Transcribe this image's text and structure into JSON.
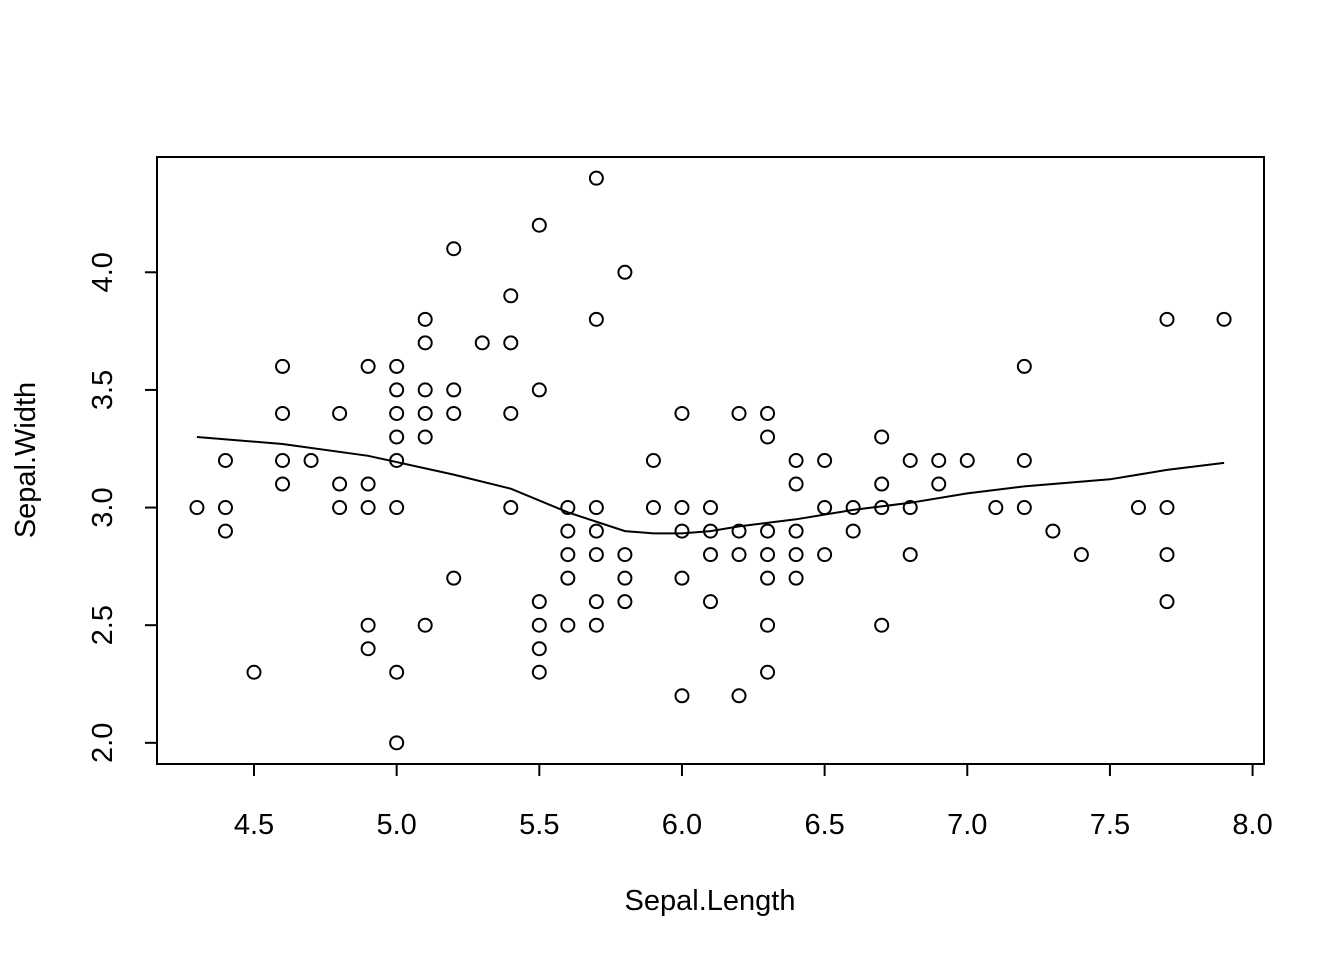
{
  "chart_data": {
    "type": "scatter",
    "title": "",
    "xlabel": "Sepal.Length",
    "ylabel": "Sepal.Width",
    "xlim": [
      4.16,
      8.04
    ],
    "ylim": [
      1.91,
      4.49
    ],
    "xticks": [
      4.5,
      5.0,
      5.5,
      6.0,
      6.5,
      7.0,
      7.5,
      8.0
    ],
    "xtick_labels": [
      "4.5",
      "5.0",
      "5.5",
      "6.0",
      "6.5",
      "7.0",
      "7.5",
      "8.0"
    ],
    "yticks": [
      2.0,
      2.5,
      3.0,
      3.5,
      4.0
    ],
    "ytick_labels": [
      "2.0",
      "2.5",
      "3.0",
      "3.5",
      "4.0"
    ],
    "grid": false,
    "legend": "none",
    "points": [
      [
        4.3,
        3.0
      ],
      [
        4.4,
        3.2
      ],
      [
        4.4,
        3.0
      ],
      [
        4.4,
        2.9
      ],
      [
        4.5,
        2.3
      ],
      [
        4.6,
        3.6
      ],
      [
        4.6,
        3.4
      ],
      [
        4.6,
        3.2
      ],
      [
        4.6,
        3.1
      ],
      [
        4.7,
        3.2
      ],
      [
        4.8,
        3.4
      ],
      [
        4.8,
        3.1
      ],
      [
        4.8,
        3.0
      ],
      [
        4.9,
        3.6
      ],
      [
        4.9,
        3.1
      ],
      [
        4.9,
        3.0
      ],
      [
        4.9,
        2.5
      ],
      [
        4.9,
        2.4
      ],
      [
        5.0,
        3.6
      ],
      [
        5.0,
        3.5
      ],
      [
        5.0,
        3.4
      ],
      [
        5.0,
        3.3
      ],
      [
        5.0,
        3.2
      ],
      [
        5.0,
        3.0
      ],
      [
        5.0,
        2.3
      ],
      [
        5.0,
        2.0
      ],
      [
        5.1,
        3.8
      ],
      [
        5.1,
        3.7
      ],
      [
        5.1,
        3.5
      ],
      [
        5.1,
        3.4
      ],
      [
        5.1,
        3.3
      ],
      [
        5.1,
        2.5
      ],
      [
        5.2,
        4.1
      ],
      [
        5.2,
        3.5
      ],
      [
        5.2,
        3.4
      ],
      [
        5.2,
        2.7
      ],
      [
        5.3,
        3.7
      ],
      [
        5.4,
        3.9
      ],
      [
        5.4,
        3.7
      ],
      [
        5.4,
        3.4
      ],
      [
        5.4,
        3.0
      ],
      [
        5.5,
        4.2
      ],
      [
        5.5,
        3.5
      ],
      [
        5.5,
        2.6
      ],
      [
        5.5,
        2.5
      ],
      [
        5.5,
        2.4
      ],
      [
        5.5,
        2.3
      ],
      [
        5.6,
        3.0
      ],
      [
        5.6,
        2.9
      ],
      [
        5.6,
        2.8
      ],
      [
        5.6,
        2.7
      ],
      [
        5.6,
        2.5
      ],
      [
        5.7,
        4.4
      ],
      [
        5.7,
        3.8
      ],
      [
        5.7,
        3.0
      ],
      [
        5.7,
        2.9
      ],
      [
        5.7,
        2.8
      ],
      [
        5.7,
        2.6
      ],
      [
        5.7,
        2.5
      ],
      [
        5.8,
        4.0
      ],
      [
        5.8,
        2.8
      ],
      [
        5.8,
        2.7
      ],
      [
        5.8,
        2.6
      ],
      [
        5.9,
        3.2
      ],
      [
        5.9,
        3.0
      ],
      [
        6.0,
        3.4
      ],
      [
        6.0,
        3.0
      ],
      [
        6.0,
        2.9
      ],
      [
        6.0,
        2.7
      ],
      [
        6.0,
        2.2
      ],
      [
        6.1,
        3.0
      ],
      [
        6.1,
        2.9
      ],
      [
        6.1,
        2.8
      ],
      [
        6.1,
        2.6
      ],
      [
        6.2,
        3.4
      ],
      [
        6.2,
        2.9
      ],
      [
        6.2,
        2.8
      ],
      [
        6.2,
        2.2
      ],
      [
        6.3,
        3.4
      ],
      [
        6.3,
        3.3
      ],
      [
        6.3,
        2.9
      ],
      [
        6.3,
        2.8
      ],
      [
        6.3,
        2.7
      ],
      [
        6.3,
        2.5
      ],
      [
        6.3,
        2.3
      ],
      [
        6.4,
        3.2
      ],
      [
        6.4,
        3.1
      ],
      [
        6.4,
        2.9
      ],
      [
        6.4,
        2.8
      ],
      [
        6.4,
        2.7
      ],
      [
        6.5,
        3.2
      ],
      [
        6.5,
        3.0
      ],
      [
        6.5,
        2.8
      ],
      [
        6.6,
        3.0
      ],
      [
        6.6,
        2.9
      ],
      [
        6.7,
        3.3
      ],
      [
        6.7,
        3.1
      ],
      [
        6.7,
        3.0
      ],
      [
        6.7,
        2.5
      ],
      [
        6.8,
        3.2
      ],
      [
        6.8,
        3.0
      ],
      [
        6.8,
        2.8
      ],
      [
        6.9,
        3.2
      ],
      [
        6.9,
        3.1
      ],
      [
        7.0,
        3.2
      ],
      [
        7.1,
        3.0
      ],
      [
        7.2,
        3.6
      ],
      [
        7.2,
        3.2
      ],
      [
        7.2,
        3.0
      ],
      [
        7.3,
        2.9
      ],
      [
        7.4,
        2.8
      ],
      [
        7.6,
        3.0
      ],
      [
        7.7,
        3.8
      ],
      [
        7.7,
        3.0
      ],
      [
        7.7,
        2.8
      ],
      [
        7.7,
        2.6
      ],
      [
        7.9,
        3.8
      ]
    ],
    "smooth_line": [
      [
        4.3,
        3.3
      ],
      [
        4.6,
        3.27
      ],
      [
        4.9,
        3.22
      ],
      [
        5.2,
        3.14
      ],
      [
        5.4,
        3.08
      ],
      [
        5.6,
        2.98
      ],
      [
        5.8,
        2.9
      ],
      [
        5.9,
        2.89
      ],
      [
        6.0,
        2.89
      ],
      [
        6.1,
        2.9
      ],
      [
        6.2,
        2.92
      ],
      [
        6.4,
        2.95
      ],
      [
        6.6,
        2.99
      ],
      [
        6.8,
        3.02
      ],
      [
        7.0,
        3.06
      ],
      [
        7.2,
        3.09
      ],
      [
        7.5,
        3.12
      ],
      [
        7.7,
        3.16
      ],
      [
        7.9,
        3.19
      ]
    ]
  }
}
